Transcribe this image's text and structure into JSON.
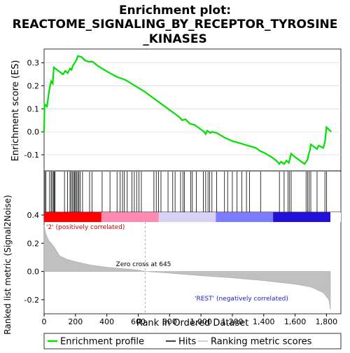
{
  "chart_data": {
    "type": "line",
    "title_lines": [
      "Enrichment plot:",
      "REACTOME_SIGNALING_BY_RECEPTOR_TYROSINE",
      "_KINASES"
    ],
    "x_label": "Rank in Ordered Dataset",
    "x_ticks": [
      "0",
      "200",
      "400",
      "600",
      "800",
      "1,000",
      "1,200",
      "1,400",
      "1,600",
      "1,800"
    ],
    "x_tick_values": [
      0,
      200,
      400,
      600,
      800,
      1000,
      1200,
      1400,
      1600,
      1800
    ],
    "x_range": [
      0,
      1850
    ],
    "es_panel": {
      "y_label": "Enrichment score (ES)",
      "y_ticks": [
        "0.3",
        "0.2",
        "0.1",
        "0.0",
        "-0.1"
      ],
      "y_tick_values": [
        0.3,
        0.2,
        0.1,
        0.0,
        -0.1
      ],
      "y_range": [
        -0.17,
        0.36
      ],
      "series_name": "Enrichment profile",
      "color": "#00e000",
      "points": [
        [
          0,
          0.0
        ],
        [
          3,
          0.12
        ],
        [
          18,
          0.11
        ],
        [
          35,
          0.19
        ],
        [
          45,
          0.22
        ],
        [
          55,
          0.21
        ],
        [
          62,
          0.28
        ],
        [
          120,
          0.25
        ],
        [
          135,
          0.265
        ],
        [
          150,
          0.255
        ],
        [
          165,
          0.275
        ],
        [
          175,
          0.27
        ],
        [
          185,
          0.29
        ],
        [
          195,
          0.3
        ],
        [
          205,
          0.31
        ],
        [
          215,
          0.33
        ],
        [
          240,
          0.325
        ],
        [
          260,
          0.31
        ],
        [
          285,
          0.305
        ],
        [
          310,
          0.305
        ],
        [
          345,
          0.285
        ],
        [
          370,
          0.275
        ],
        [
          420,
          0.255
        ],
        [
          460,
          0.24
        ],
        [
          520,
          0.225
        ],
        [
          580,
          0.2
        ],
        [
          640,
          0.175
        ],
        [
          700,
          0.145
        ],
        [
          760,
          0.115
        ],
        [
          820,
          0.085
        ],
        [
          860,
          0.065
        ],
        [
          880,
          0.05
        ],
        [
          900,
          0.055
        ],
        [
          930,
          0.035
        ],
        [
          960,
          0.03
        ],
        [
          990,
          0.015
        ],
        [
          1020,
          0.0
        ],
        [
          1030,
          -0.01
        ],
        [
          1040,
          0.005
        ],
        [
          1060,
          -0.005
        ],
        [
          1070,
          0.0
        ],
        [
          1100,
          -0.005
        ],
        [
          1150,
          -0.025
        ],
        [
          1200,
          -0.04
        ],
        [
          1250,
          -0.05
        ],
        [
          1300,
          -0.06
        ],
        [
          1350,
          -0.07
        ],
        [
          1380,
          -0.085
        ],
        [
          1400,
          -0.09
        ],
        [
          1450,
          -0.11
        ],
        [
          1480,
          -0.125
        ],
        [
          1500,
          -0.14
        ],
        [
          1510,
          -0.13
        ],
        [
          1530,
          -0.14
        ],
        [
          1545,
          -0.125
        ],
        [
          1560,
          -0.135
        ],
        [
          1575,
          -0.095
        ],
        [
          1600,
          -0.11
        ],
        [
          1630,
          -0.125
        ],
        [
          1660,
          -0.14
        ],
        [
          1680,
          -0.12
        ],
        [
          1685,
          -0.1
        ],
        [
          1695,
          -0.08
        ],
        [
          1700,
          -0.055
        ],
        [
          1740,
          -0.075
        ],
        [
          1750,
          -0.06
        ],
        [
          1780,
          -0.07
        ],
        [
          1790,
          -0.045
        ],
        [
          1800,
          0.02
        ],
        [
          1830,
          0.0
        ]
      ]
    },
    "hits": [
      5,
      12,
      35,
      45,
      52,
      60,
      65,
      70,
      130,
      150,
      165,
      172,
      180,
      188,
      195,
      200,
      208,
      215,
      222,
      230,
      245,
      290,
      305,
      370,
      420,
      465,
      485,
      500,
      512,
      530,
      560,
      575,
      590,
      605,
      620,
      700,
      715,
      730,
      745,
      790,
      820,
      835,
      870,
      885,
      895,
      935,
      945,
      970,
      1015,
      1030,
      1045,
      1055,
      1070,
      1100,
      1150,
      1170,
      1200,
      1230,
      1260,
      1290,
      1310,
      1380,
      1500,
      1530,
      1555,
      1565,
      1575,
      1670,
      1680,
      1690,
      1700,
      1740,
      1790,
      1800
    ],
    "ranked_metric_panel": {
      "y_label": "Ranked list metric (Signal2Noise)",
      "y_ticks": [
        "0.4",
        "0.2",
        "0.0",
        "-0.2"
      ],
      "y_tick_values": [
        0.4,
        0.2,
        0.0,
        -0.2
      ],
      "y_range": [
        -0.3,
        0.42
      ],
      "series_name": "Ranking metric scores",
      "color": "#c0c0c0",
      "points": [
        [
          0,
          0.33
        ],
        [
          10,
          0.27
        ],
        [
          30,
          0.22
        ],
        [
          60,
          0.18
        ],
        [
          100,
          0.11
        ],
        [
          150,
          0.085
        ],
        [
          200,
          0.07
        ],
        [
          300,
          0.045
        ],
        [
          400,
          0.03
        ],
        [
          500,
          0.02
        ],
        [
          600,
          0.01
        ],
        [
          645,
          0.0
        ],
        [
          800,
          -0.012
        ],
        [
          1000,
          -0.03
        ],
        [
          1200,
          -0.045
        ],
        [
          1400,
          -0.065
        ],
        [
          1600,
          -0.09
        ],
        [
          1700,
          -0.11
        ],
        [
          1780,
          -0.15
        ],
        [
          1815,
          -0.2
        ],
        [
          1825,
          -0.27
        ]
      ]
    },
    "zero_cross": {
      "rank": 645,
      "label": "Zero cross at 645"
    },
    "pos_label": "'2' (positively correlated)",
    "neg_label": "'REST' (negatively correlated)",
    "legend": {
      "hits_label": "Hits",
      "colors": {
        "profile": "#00e000",
        "hits": "#000000",
        "metric": "#c0c0c0"
      }
    },
    "heat_colors": [
      "#ff0000",
      "#ff8ab0",
      "#d9d0f5",
      "#7b7bff",
      "#2010d8"
    ]
  }
}
